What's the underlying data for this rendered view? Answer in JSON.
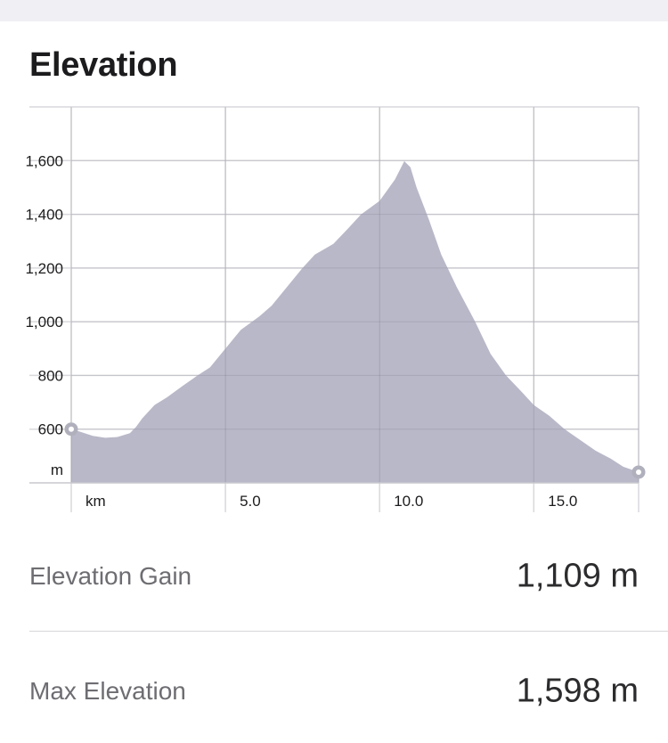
{
  "section": {
    "title": "Elevation"
  },
  "stats": [
    {
      "label": "Elevation Gain",
      "value": "1,109 m"
    },
    {
      "label": "Max Elevation",
      "value": "1,598 m"
    }
  ],
  "colors": {
    "area_fill": "#b9b8c8",
    "grid": "#d9d9dd",
    "endpoint": "#b0b0bd"
  },
  "chart_data": {
    "type": "area",
    "title": "",
    "xlabel": "km",
    "ylabel": "m",
    "xlim": [
      0,
      18.4
    ],
    "ylim": [
      400,
      1800
    ],
    "x_ticks": [
      5.0,
      10.0,
      15.0
    ],
    "x_tick_labels": [
      "5.0",
      "10.0",
      "15.0"
    ],
    "y_ticks": [
      600,
      800,
      1000,
      1200,
      1400,
      1600
    ],
    "y_tick_labels": [
      "600",
      "800",
      "1,000",
      "1,200",
      "1,400",
      "1,600"
    ],
    "grid": true,
    "series": [
      {
        "x": [
          0,
          0.3,
          0.7,
          1.1,
          1.5,
          1.9,
          2.1,
          2.3,
          2.7,
          3.1,
          3.6,
          4.1,
          4.5,
          5.0,
          5.5,
          6.1,
          6.5,
          7.0,
          7.5,
          7.9,
          8.5,
          9.0,
          9.4,
          10.0,
          10.5,
          10.8,
          11.0,
          11.2,
          11.6,
          12.0,
          12.5,
          13.1,
          13.6,
          14.1,
          14.6,
          15.0,
          15.5,
          16.0,
          16.5,
          17.0,
          17.5,
          17.9,
          18.4
        ],
        "y": [
          600,
          590,
          575,
          568,
          571,
          585,
          608,
          640,
          690,
          718,
          760,
          800,
          830,
          900,
          970,
          1020,
          1060,
          1130,
          1200,
          1250,
          1290,
          1350,
          1400,
          1450,
          1530,
          1598,
          1575,
          1500,
          1380,
          1250,
          1130,
          1000,
          880,
          800,
          740,
          690,
          650,
          600,
          560,
          520,
          490,
          460,
          440
        ]
      }
    ]
  }
}
